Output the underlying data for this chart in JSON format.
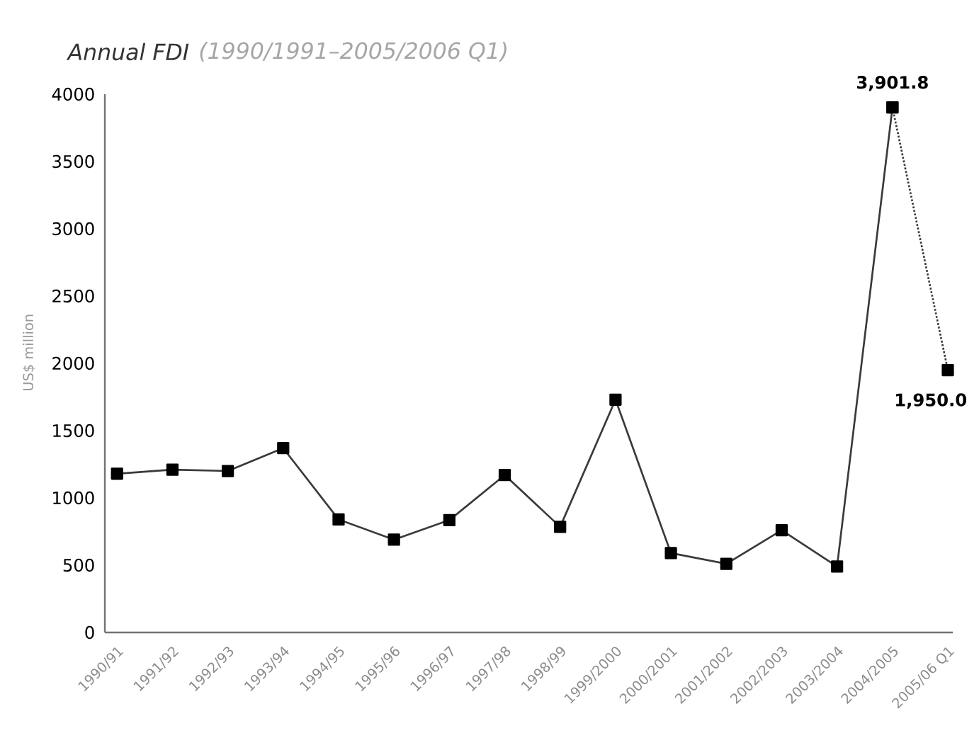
{
  "chart_data": {
    "type": "line",
    "title": "Annual FDI",
    "subtitle": "(1990/1991–2005/2006 Q1)",
    "ylabel": "US$ million",
    "categories": [
      "1990/91",
      "1991/92",
      "1992/93",
      "1993/94",
      "1994/95",
      "1995/96",
      "1996/97",
      "1997/98",
      "1998/99",
      "1999/2000",
      "2000/2001",
      "2001/2002",
      "2002/2003",
      "2003/2004",
      "2004/2005",
      "2005/06 Q1"
    ],
    "series": [
      {
        "color": "#3a3a3a",
        "line_style": "solid",
        "values": [
          1180,
          1210,
          1200,
          1370,
          840,
          690,
          835,
          1170,
          785,
          1730,
          590,
          510,
          760,
          490,
          3901.8,
          null
        ]
      },
      {
        "color": "#3a3a3a",
        "line_style": "dotted",
        "values": [
          null,
          null,
          null,
          null,
          null,
          null,
          null,
          null,
          null,
          null,
          null,
          null,
          null,
          null,
          3901.8,
          1950.0
        ],
        "value_labels": [
          null,
          null,
          null,
          null,
          null,
          null,
          null,
          null,
          null,
          null,
          null,
          null,
          null,
          null,
          "3,901.8",
          "1,950.0"
        ]
      }
    ],
    "ylim": [
      0,
      4000
    ],
    "yticks": [
      0,
      500,
      1000,
      1500,
      2000,
      2500,
      3000,
      3500,
      4000
    ],
    "marker": "square"
  }
}
